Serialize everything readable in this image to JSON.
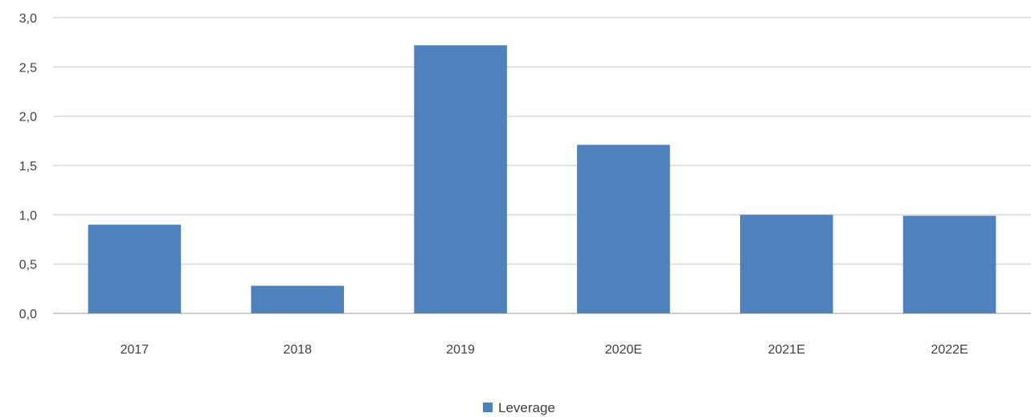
{
  "chart_data": {
    "type": "bar",
    "categories": [
      "2017",
      "2018",
      "2019",
      "2020E",
      "2021E",
      "2022E"
    ],
    "series": [
      {
        "name": "Leverage",
        "values": [
          0.9,
          0.28,
          2.72,
          1.71,
          1.0,
          0.99
        ],
        "color": "#4f81bd"
      }
    ],
    "yticks": [
      "0,0",
      "0,5",
      "1,0",
      "1,5",
      "2,0",
      "2,5",
      "3,0"
    ],
    "ylim": [
      0,
      3.0
    ],
    "grid": true,
    "legend_position": "bottom-center",
    "title": "",
    "xlabel": "",
    "ylabel": ""
  }
}
